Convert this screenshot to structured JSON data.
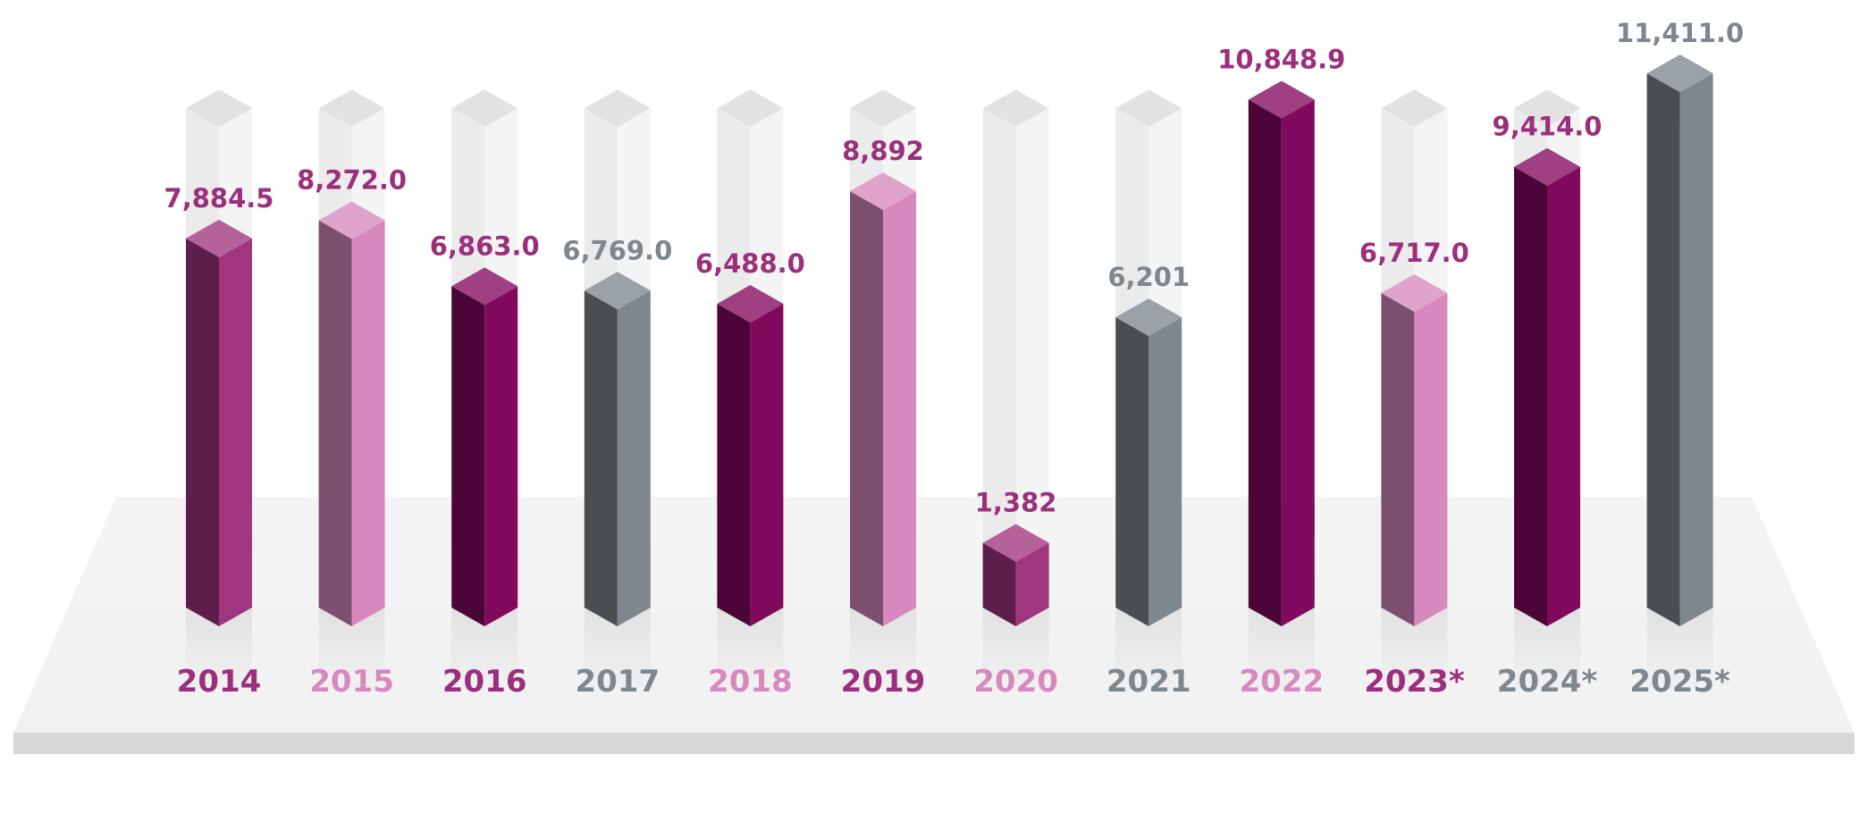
{
  "chart_data": {
    "type": "bar",
    "style": "3d-isometric-columns",
    "title": "",
    "xlabel": "",
    "ylabel": "",
    "ylim": [
      0,
      11411.0
    ],
    "grid": false,
    "legend": "none",
    "categories": [
      "2014",
      "2015",
      "2016",
      "2017",
      "2018",
      "2019",
      "2020",
      "2021",
      "2022",
      "2023*",
      "2024*",
      "2025*"
    ],
    "values": [
      7884.5,
      8272.0,
      6863.0,
      6769.0,
      6488.0,
      8892,
      1382,
      6201,
      10848.9,
      6717.0,
      9414.0,
      11411.0
    ],
    "data_labels": [
      "7,884.5",
      "8,272.0",
      "6,863.0",
      "6,769.0",
      "6,488.0",
      "8,892",
      "1,382",
      "6,201",
      "10,848.9",
      "6,717.0",
      "9,414.0",
      "11,411.0"
    ],
    "bar_colors": [
      "#a0367f",
      "#d789be",
      "#820a5e",
      "#7e878e",
      "#820a5e",
      "#d789be",
      "#a0367f",
      "#7e878e",
      "#820a5e",
      "#d789be",
      "#820a5e",
      "#7e878e"
    ],
    "value_label_colors": [
      "#9c2f7c",
      "#9c2f7c",
      "#9c2f7c",
      "#7e878e",
      "#9c2f7c",
      "#9c2f7c",
      "#9c2f7c",
      "#7e878e",
      "#9c2f7c",
      "#9c2f7c",
      "#9c2f7c",
      "#7e878e"
    ],
    "year_label_colors": [
      "#9c2f7c",
      "#d789be",
      "#9c2f7c",
      "#7e878e",
      "#d789be",
      "#9c2f7c",
      "#d789be",
      "#7e878e",
      "#d789be",
      "#9c2f7c",
      "#7e878e",
      "#7e878e"
    ]
  }
}
